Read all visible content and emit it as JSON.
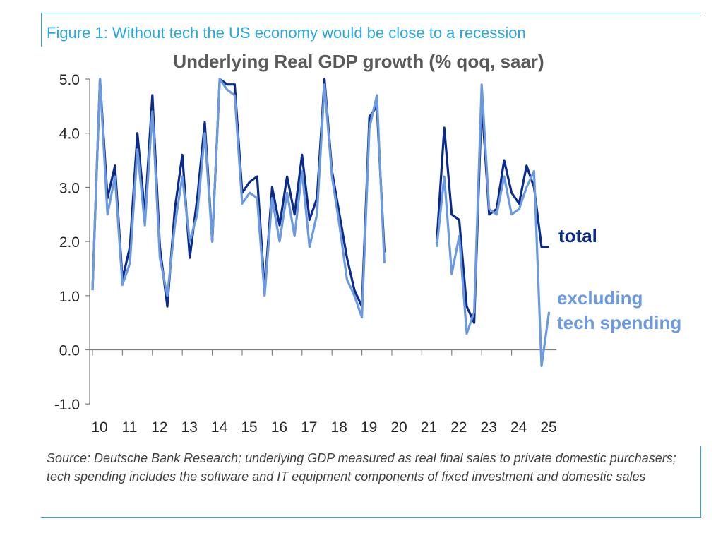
{
  "figure_title": "Figure 1: Without tech the US economy would be close to a recession",
  "source_note": "Source: Deutsche Bank Research; underlying GDP measured as real final sales to private domestic purchasers; tech spending includes the software and IT equipment components of fixed investment and domestic sales",
  "colors": {
    "total": "#0a2a8c",
    "excluding": "#6b9ae0",
    "frame": "#29a8e0",
    "axis": "#808080"
  },
  "chart_data": {
    "type": "line",
    "title": "Underlying Real GDP growth (% qoq, saar)",
    "xlabel": "",
    "ylabel": "",
    "ylim": [
      -1.0,
      5.0
    ],
    "y_ticks": [
      "5.0",
      "4.0",
      "3.0",
      "2.0",
      "1.0",
      "0.0",
      "-1.0"
    ],
    "x_ticks": [
      "10",
      "11",
      "12",
      "13",
      "14",
      "15",
      "16",
      "17",
      "18",
      "19",
      "20",
      "21",
      "22",
      "23",
      "24",
      "25"
    ],
    "grid": false,
    "legend": "direct-labels-right",
    "series": [
      {
        "name": "total",
        "color": "#0a2a8c",
        "points": [
          [
            10.0,
            1.1
          ],
          [
            10.25,
            5.0
          ],
          [
            10.5,
            2.8
          ],
          [
            10.75,
            3.4
          ],
          [
            11.0,
            1.3
          ],
          [
            11.25,
            1.9
          ],
          [
            11.5,
            4.0
          ],
          [
            11.75,
            2.5
          ],
          [
            12.0,
            4.7
          ],
          [
            12.25,
            1.9
          ],
          [
            12.5,
            0.8
          ],
          [
            12.75,
            2.6
          ],
          [
            13.0,
            3.6
          ],
          [
            13.25,
            1.7
          ],
          [
            13.5,
            2.8
          ],
          [
            13.75,
            4.2
          ],
          [
            14.0,
            2.0
          ],
          [
            14.25,
            5.0
          ],
          [
            14.5,
            4.9
          ],
          [
            14.75,
            4.9
          ],
          [
            15.0,
            2.9
          ],
          [
            15.25,
            3.1
          ],
          [
            15.5,
            3.2
          ],
          [
            15.75,
            1.1
          ],
          [
            16.0,
            3.0
          ],
          [
            16.25,
            2.3
          ],
          [
            16.5,
            3.2
          ],
          [
            16.75,
            2.5
          ],
          [
            17.0,
            3.6
          ],
          [
            17.25,
            2.4
          ],
          [
            17.5,
            2.8
          ],
          [
            17.75,
            5.0
          ],
          [
            18.0,
            3.3
          ],
          [
            18.25,
            2.5
          ],
          [
            18.5,
            1.7
          ],
          [
            18.75,
            1.1
          ],
          [
            19.0,
            0.8
          ],
          [
            19.25,
            4.3
          ],
          [
            19.5,
            4.5
          ],
          [
            19.75,
            1.8
          ],
          [
            21.5,
            2.0
          ],
          [
            21.75,
            4.1
          ],
          [
            22.0,
            2.5
          ],
          [
            22.25,
            2.4
          ],
          [
            22.5,
            0.8
          ],
          [
            22.75,
            0.5
          ],
          [
            23.0,
            4.6
          ],
          [
            23.25,
            2.5
          ],
          [
            23.5,
            2.6
          ],
          [
            23.75,
            3.5
          ],
          [
            24.0,
            2.9
          ],
          [
            24.25,
            2.7
          ],
          [
            24.5,
            3.4
          ],
          [
            24.75,
            3.0
          ],
          [
            25.0,
            1.9
          ],
          [
            25.25,
            1.9
          ]
        ]
      },
      {
        "name": "excluding tech spending",
        "color": "#6b9ae0",
        "points": [
          [
            10.0,
            1.1
          ],
          [
            10.25,
            5.0
          ],
          [
            10.5,
            2.5
          ],
          [
            10.75,
            3.2
          ],
          [
            11.0,
            1.2
          ],
          [
            11.25,
            1.6
          ],
          [
            11.5,
            3.7
          ],
          [
            11.75,
            2.3
          ],
          [
            12.0,
            4.4
          ],
          [
            12.25,
            1.7
          ],
          [
            12.5,
            1.0
          ],
          [
            12.75,
            2.3
          ],
          [
            13.0,
            3.2
          ],
          [
            13.25,
            2.0
          ],
          [
            13.5,
            2.5
          ],
          [
            13.75,
            4.0
          ],
          [
            14.0,
            2.0
          ],
          [
            14.25,
            5.0
          ],
          [
            14.5,
            4.8
          ],
          [
            14.75,
            4.7
          ],
          [
            15.0,
            2.7
          ],
          [
            15.25,
            2.9
          ],
          [
            15.5,
            2.8
          ],
          [
            15.75,
            1.0
          ],
          [
            16.0,
            2.8
          ],
          [
            16.25,
            2.0
          ],
          [
            16.5,
            2.9
          ],
          [
            16.75,
            2.1
          ],
          [
            17.0,
            3.3
          ],
          [
            17.25,
            1.9
          ],
          [
            17.5,
            2.5
          ],
          [
            17.75,
            4.9
          ],
          [
            18.0,
            3.2
          ],
          [
            18.25,
            2.3
          ],
          [
            18.5,
            1.3
          ],
          [
            18.75,
            1.0
          ],
          [
            19.0,
            0.6
          ],
          [
            19.25,
            4.1
          ],
          [
            19.5,
            4.7
          ],
          [
            19.75,
            1.6
          ],
          [
            21.5,
            1.9
          ],
          [
            21.75,
            3.2
          ],
          [
            22.0,
            1.4
          ],
          [
            22.25,
            2.1
          ],
          [
            22.5,
            0.3
          ],
          [
            22.75,
            0.7
          ],
          [
            23.0,
            4.9
          ],
          [
            23.25,
            2.6
          ],
          [
            23.5,
            2.5
          ],
          [
            23.75,
            3.2
          ],
          [
            24.0,
            2.5
          ],
          [
            24.25,
            2.6
          ],
          [
            24.5,
            3.0
          ],
          [
            24.75,
            3.3
          ],
          [
            25.0,
            -0.3
          ],
          [
            25.25,
            0.7
          ]
        ]
      }
    ],
    "series_labels": {
      "total": [
        "total"
      ],
      "excluding": [
        "excluding",
        "tech spending"
      ]
    }
  }
}
